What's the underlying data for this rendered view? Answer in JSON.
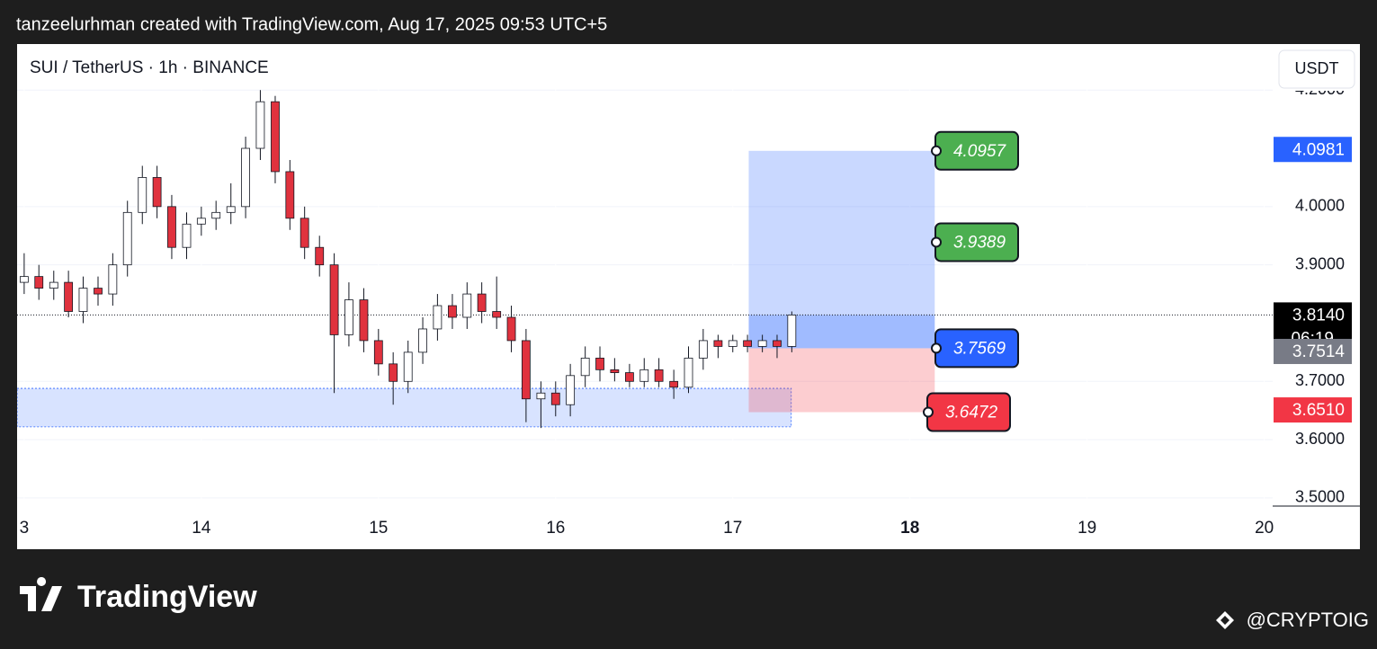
{
  "header": {
    "credit": "tanzeelurhman created with TradingView.com, Aug 17, 2025 09:53 UTC+5"
  },
  "chart_data": {
    "type": "candlestick",
    "title": "SUI / TetherUS · 1h · BINANCE",
    "currency": "USDT",
    "up_color": "#ffffff",
    "down_color": "#e0323e",
    "x": [
      13,
      13.083,
      13.167,
      13.25,
      13.333,
      13.417,
      13.5,
      13.583,
      13.667,
      13.75,
      13.833,
      13.917,
      14,
      14.083,
      14.167,
      14.25,
      14.333,
      14.417,
      14.5,
      14.583,
      14.667,
      14.75,
      14.833,
      14.917,
      15,
      15.083,
      15.167,
      15.25,
      15.333,
      15.417,
      15.5,
      15.583,
      15.667,
      15.75,
      15.833,
      15.917,
      16,
      16.083,
      16.167,
      16.25,
      16.333,
      16.417,
      16.5,
      16.583,
      16.667,
      16.75,
      16.833,
      16.917,
      17,
      17.083,
      17.167,
      17.25,
      17.333
    ],
    "open": [
      3.87,
      3.88,
      3.86,
      3.87,
      3.82,
      3.86,
      3.85,
      3.9,
      3.99,
      4.05,
      4.0,
      3.93,
      3.97,
      3.98,
      3.99,
      4.0,
      4.1,
      4.18,
      4.06,
      3.98,
      3.93,
      3.9,
      3.78,
      3.84,
      3.77,
      3.73,
      3.7,
      3.75,
      3.79,
      3.83,
      3.81,
      3.85,
      3.82,
      3.81,
      3.77,
      3.67,
      3.68,
      3.66,
      3.71,
      3.74,
      3.72,
      3.715,
      3.7,
      3.72,
      3.7,
      3.69,
      3.74,
      3.77,
      3.76,
      3.77,
      3.76,
      3.77,
      3.76
    ],
    "high": [
      3.92,
      3.9,
      3.89,
      3.89,
      3.88,
      3.88,
      3.92,
      4.01,
      4.07,
      4.07,
      4.02,
      3.99,
      4.0,
      4.01,
      4.04,
      4.12,
      4.2,
      4.19,
      4.08,
      4.0,
      3.95,
      3.92,
      3.87,
      3.86,
      3.79,
      3.75,
      3.77,
      3.81,
      3.85,
      3.85,
      3.87,
      3.87,
      3.88,
      3.83,
      3.79,
      3.7,
      3.7,
      3.73,
      3.76,
      3.76,
      3.74,
      3.73,
      3.74,
      3.74,
      3.72,
      3.76,
      3.79,
      3.78,
      3.78,
      3.78,
      3.78,
      3.78,
      3.82
    ],
    "low": [
      3.85,
      3.84,
      3.84,
      3.81,
      3.8,
      3.83,
      3.83,
      3.88,
      3.97,
      3.98,
      3.91,
      3.91,
      3.95,
      3.96,
      3.97,
      3.98,
      4.08,
      4.04,
      3.96,
      3.91,
      3.88,
      3.68,
      3.76,
      3.75,
      3.71,
      3.66,
      3.68,
      3.73,
      3.77,
      3.79,
      3.79,
      3.8,
      3.79,
      3.75,
      3.63,
      3.62,
      3.64,
      3.64,
      3.69,
      3.7,
      3.7,
      3.69,
      3.69,
      3.69,
      3.67,
      3.68,
      3.72,
      3.74,
      3.75,
      3.75,
      3.75,
      3.74,
      3.75
    ],
    "close": [
      3.88,
      3.86,
      3.87,
      3.82,
      3.86,
      3.85,
      3.9,
      3.99,
      4.05,
      4.0,
      3.93,
      3.97,
      3.98,
      3.99,
      4.0,
      4.1,
      4.18,
      4.06,
      3.98,
      3.93,
      3.9,
      3.78,
      3.84,
      3.77,
      3.73,
      3.7,
      3.75,
      3.79,
      3.83,
      3.81,
      3.85,
      3.82,
      3.81,
      3.77,
      3.67,
      3.68,
      3.66,
      3.71,
      3.74,
      3.72,
      3.715,
      3.7,
      3.72,
      3.7,
      3.69,
      3.74,
      3.77,
      3.76,
      3.77,
      3.76,
      3.77,
      3.76,
      3.814
    ],
    "xlim": [
      12.96,
      20.54
    ],
    "xticks": [
      {
        "value": 13,
        "label": "3"
      },
      14,
      15,
      16,
      17,
      18,
      19,
      20
    ],
    "bold_xtick": 18,
    "ylim": [
      3.486,
      4.279
    ],
    "yticks": [
      {
        "value": 3.5,
        "label": "3.5000"
      },
      {
        "value": 3.6,
        "label": "3.6000"
      },
      {
        "value": 3.7,
        "label": "3.7000"
      },
      {
        "value": 3.9,
        "label": "3.9000"
      },
      {
        "value": 4.0,
        "label": "4.0000"
      },
      {
        "value": 4.2,
        "label": "4.2000"
      }
    ],
    "grid": true,
    "zone": {
      "x": [
        12.96,
        17.33
      ],
      "y": [
        3.622,
        3.688
      ]
    },
    "position": {
      "x": [
        17.09,
        18.14
      ],
      "levels": [
        {
          "value": 4.0957,
          "color": "#4caf50",
          "text_color": "#ffffff"
        },
        {
          "value": 3.9389,
          "color": "#4caf50",
          "text_color": "#ffffff"
        },
        {
          "value": 3.7569,
          "color": "#2962ff",
          "text_color": "#ffffff"
        },
        {
          "value": 3.6472,
          "color": "#f23645",
          "text_color": "#ffffff"
        }
      ]
    },
    "price_labels": [
      {
        "value": 4.0981,
        "color": "#2962ff"
      },
      {
        "value": 3.814,
        "label": "3.8140",
        "color": "#000000",
        "timer": "06:19"
      },
      {
        "value": 3.7514,
        "color": "#787b86"
      },
      {
        "value": 3.651,
        "label": "3.6510",
        "color": "#f23645"
      }
    ]
  },
  "footer": {
    "logo": "TradingView",
    "watermark": "@CRYPTOIG"
  }
}
